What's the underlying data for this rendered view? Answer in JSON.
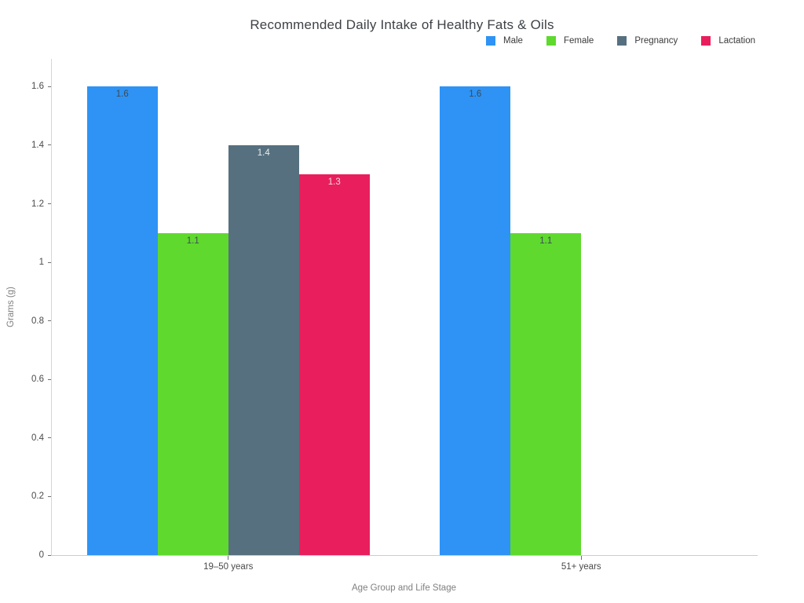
{
  "chart_data": {
    "type": "bar",
    "title": "Recommended Daily Intake of Healthy Fats & Oils",
    "xlabel": "Age Group and Life Stage",
    "ylabel": "Grams (g)",
    "categories": [
      "19–50 years",
      "51+ years"
    ],
    "series": [
      {
        "name": "Male",
        "color": "#2E93F5",
        "label_color": "#3D4B56",
        "values": [
          1.6,
          1.6
        ]
      },
      {
        "name": "Female",
        "color": "#5FD92E",
        "label_color": "#3D4B56",
        "values": [
          1.1,
          1.1
        ]
      },
      {
        "name": "Pregnancy",
        "color": "#56707F",
        "label_color": "#E9EDEF",
        "values": [
          1.4,
          null
        ]
      },
      {
        "name": "Lactation",
        "color": "#E81F5C",
        "label_color": "#F4D9E0",
        "values": [
          1.3,
          null
        ]
      }
    ],
    "value_labels": [
      [
        "1.6",
        "1.1",
        "1.4",
        "1.3"
      ],
      [
        "1.6",
        "1.1",
        null,
        null
      ]
    ],
    "ylim": [
      0,
      1.695
    ],
    "yticks": [
      0,
      0.2,
      0.4,
      0.6,
      0.8,
      1,
      1.2,
      1.4,
      1.6
    ],
    "ytick_labels": [
      "0",
      "0.2",
      "0.4",
      "0.6",
      "0.8",
      "1",
      "1.2",
      "1.4",
      "1.6"
    ],
    "grid": false,
    "legend_position": "top-right",
    "background": "#ffffff"
  }
}
